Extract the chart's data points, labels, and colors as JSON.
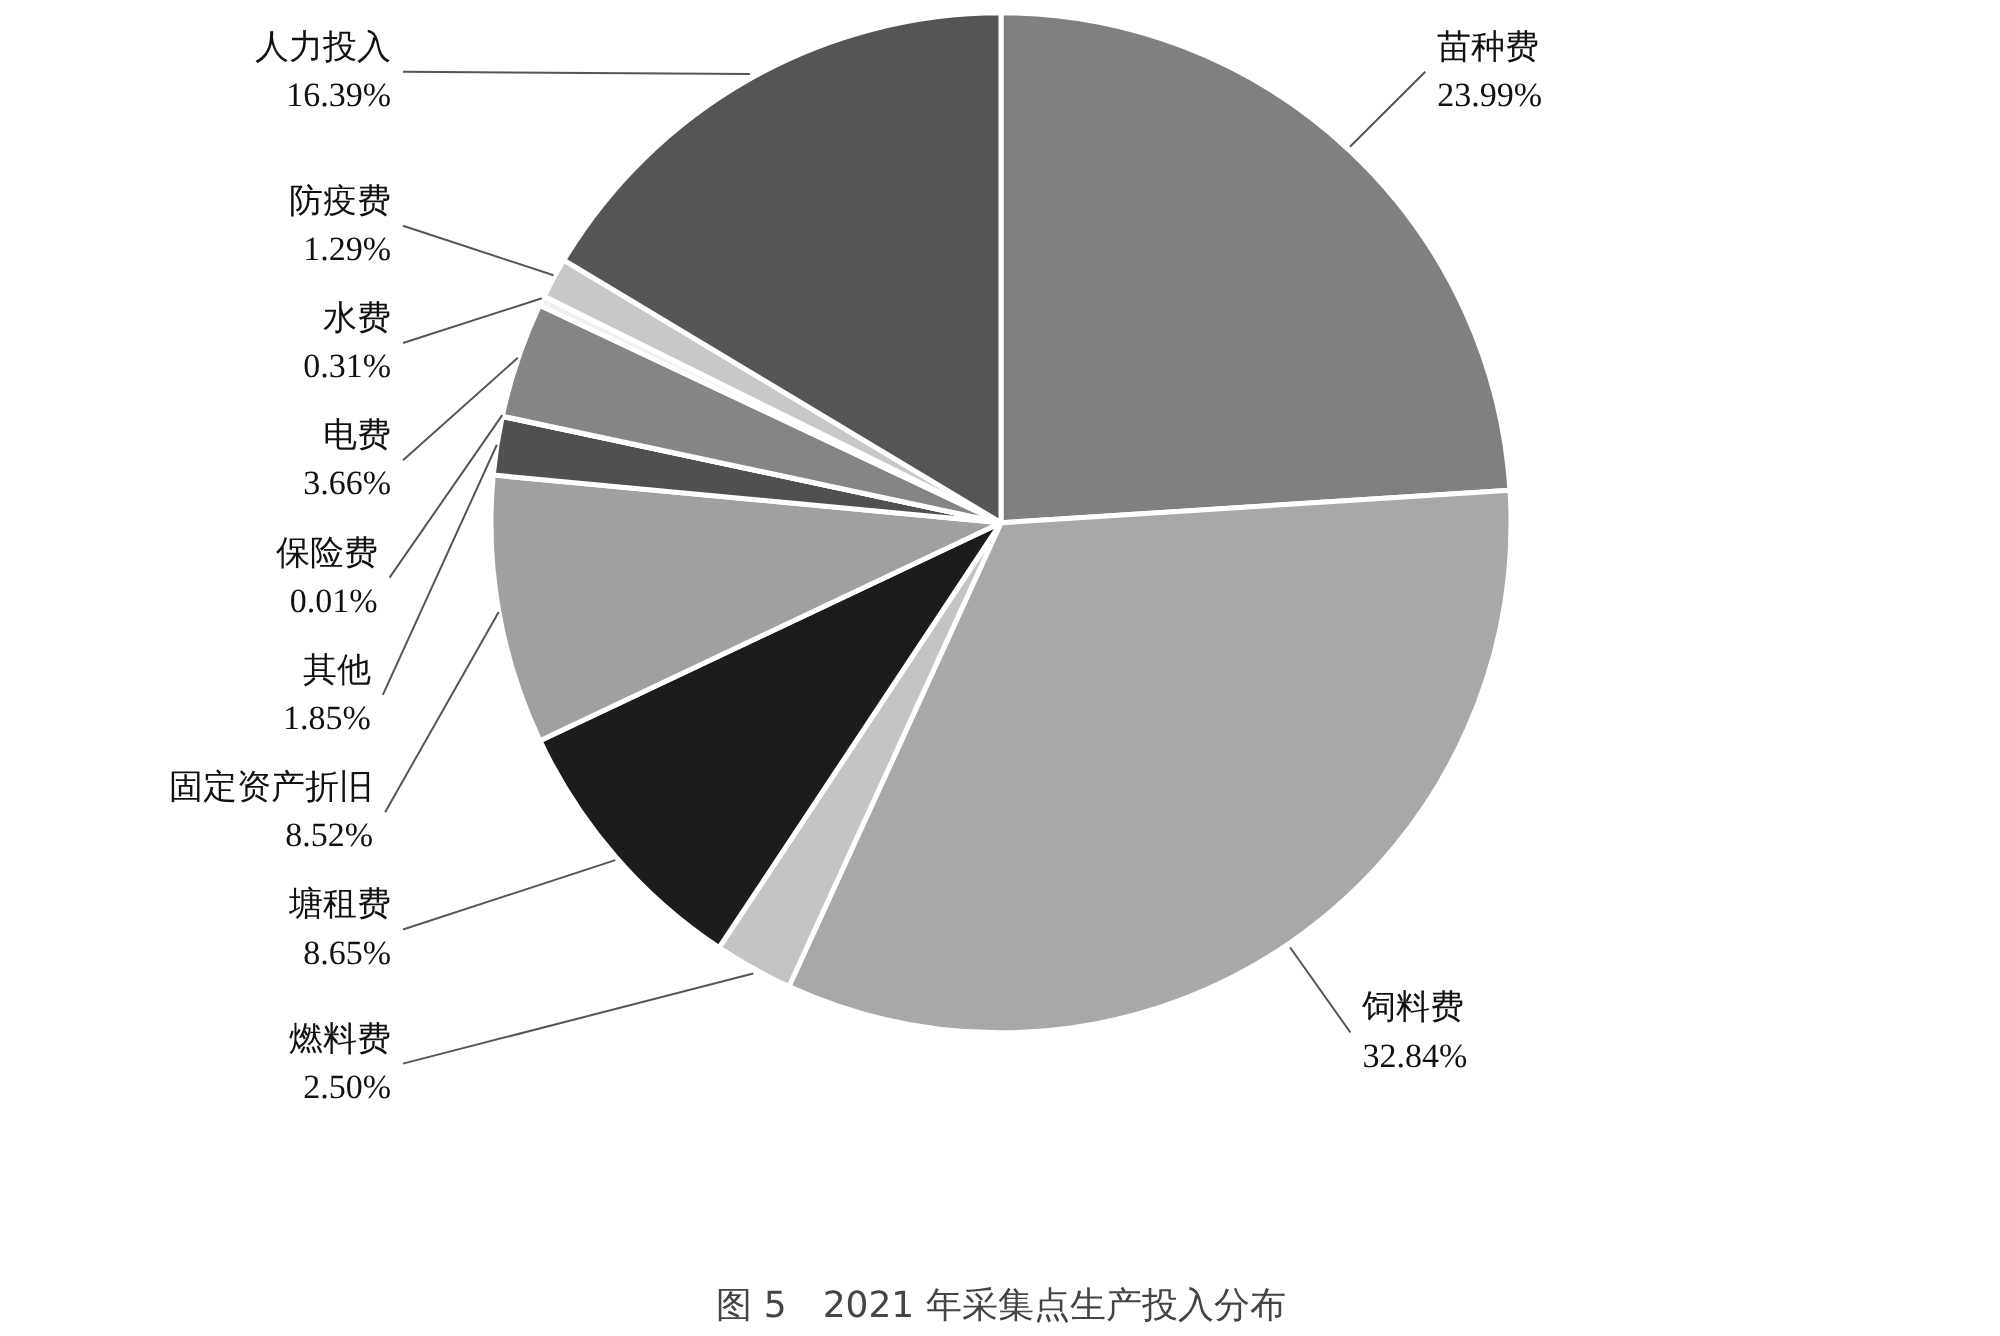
{
  "chart_data": {
    "type": "pie",
    "title": "图 5　2021 年采集点生产投入分布",
    "categories": [
      "苗种费",
      "饲料费",
      "燃料费",
      "塘租费",
      "固定资产折旧",
      "其他",
      "保险费",
      "电费",
      "水费",
      "防疫费",
      "人力投入"
    ],
    "values": [
      23.99,
      32.84,
      2.5,
      8.65,
      8.52,
      1.85,
      0.01,
      3.66,
      0.31,
      1.29,
      16.39
    ],
    "value_labels": [
      "23.99%",
      "32.84%",
      "2.50%",
      "8.65%",
      "8.52%",
      "1.85%",
      "0.01%",
      "3.66%",
      "0.31%",
      "1.29%",
      "16.39%"
    ],
    "colors": [
      "#808080",
      "#a8a8a8",
      "#c4c4c4",
      "#1c1c1c",
      "#a0a0a0",
      "#505050",
      "#606060",
      "#858585",
      "#f0f0f0",
      "#c8c8c8",
      "#555555"
    ]
  }
}
